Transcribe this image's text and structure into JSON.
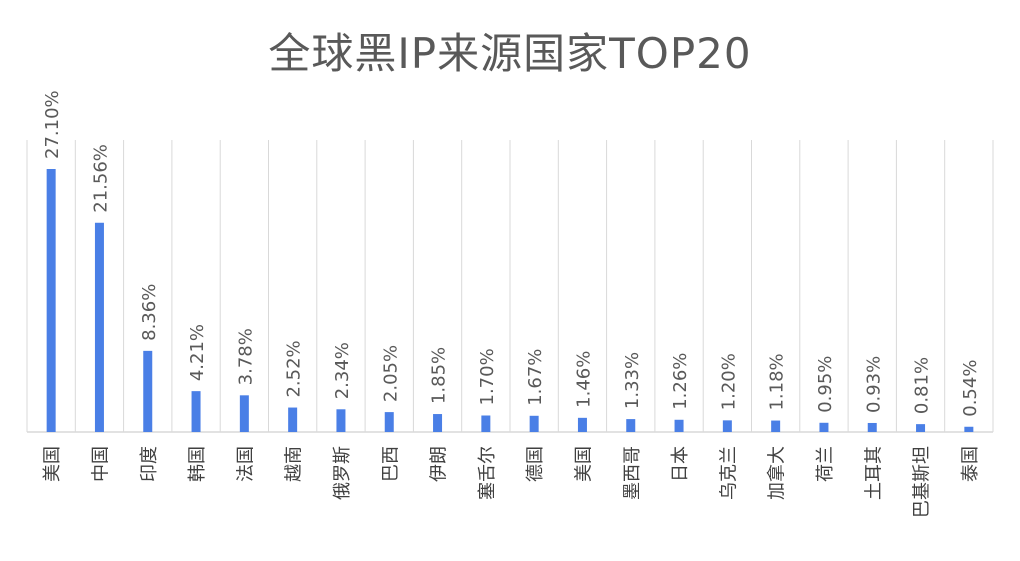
{
  "chart_data": {
    "type": "bar",
    "title": "全球黑IP来源国家TOP20",
    "xlabel": "",
    "ylabel": "",
    "ylim": [
      0,
      30
    ],
    "grid": "vertical separators",
    "legend": "none",
    "colors": {
      "bar": "#4a7fe6",
      "grid": "#d9d9d9",
      "text": "#595959"
    },
    "categories": [
      "美国",
      "中国",
      "印度",
      "韩国",
      "法国",
      "越南",
      "俄罗斯",
      "巴西",
      "伊朗",
      "塞舌尔",
      "德国",
      "美国",
      "墨西哥",
      "日本",
      "乌克兰",
      "加拿大",
      "荷兰",
      "土耳其",
      "巴基斯坦",
      "泰国"
    ],
    "values": [
      27.1,
      21.56,
      8.36,
      4.21,
      3.78,
      2.52,
      2.34,
      2.05,
      1.85,
      1.7,
      1.67,
      1.46,
      1.33,
      1.26,
      1.2,
      1.18,
      0.95,
      0.93,
      0.81,
      0.54
    ],
    "data_labels": [
      "27.10%",
      "21.56%",
      "8.36%",
      "4.21%",
      "3.78%",
      "2.52%",
      "2.34%",
      "2.05%",
      "1.85%",
      "1.70%",
      "1.67%",
      "1.46%",
      "1.33%",
      "1.26%",
      "1.20%",
      "1.18%",
      "0.95%",
      "0.93%",
      "0.81%",
      "0.54%"
    ]
  }
}
